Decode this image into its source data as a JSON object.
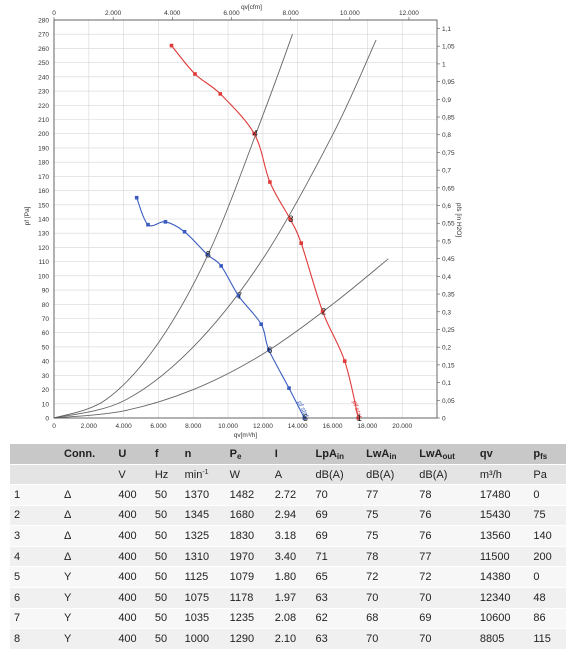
{
  "chart_data": {
    "type": "line",
    "x_bottom": {
      "label": "qv[m³/h]",
      "range": [
        0,
        22000
      ],
      "ticks": [
        0,
        2000,
        4000,
        6000,
        8000,
        10000,
        12000,
        14000,
        16000,
        18000,
        20000
      ],
      "tick_labels": [
        "0",
        "2.000",
        "4.000",
        "6.000",
        "8.000",
        "10.000",
        "12.000",
        "14.000",
        "16.000",
        "18.000",
        "20.000"
      ]
    },
    "x_top": {
      "label": "qv[cfm]",
      "range": [
        0,
        12949
      ],
      "ticks": [
        0,
        2000,
        4000,
        6000,
        8000,
        10000,
        12000
      ],
      "tick_labels": [
        "0",
        "2.000",
        "4.000",
        "6.000",
        "8.000",
        "10.000",
        "12.000"
      ]
    },
    "y_left": {
      "label": "pf [Pa]",
      "range": [
        0,
        280
      ],
      "ticks": [
        0,
        10,
        20,
        30,
        40,
        50,
        60,
        70,
        80,
        90,
        100,
        110,
        120,
        130,
        140,
        150,
        160,
        170,
        180,
        190,
        200,
        210,
        220,
        230,
        240,
        250,
        260,
        270,
        280
      ]
    },
    "y_right": {
      "label": "pfs [in H2O]",
      "range": [
        0,
        1.124
      ],
      "ticks": [
        0,
        0.05,
        0.1,
        0.15,
        0.2,
        0.25,
        0.3,
        0.35,
        0.4,
        0.45,
        0.5,
        0.55,
        0.6,
        0.65,
        0.7,
        0.75,
        0.8,
        0.85,
        0.9,
        0.95,
        1,
        1.05,
        1.1
      ],
      "tick_labels": [
        "0",
        "0,05",
        "0,1",
        "0,15",
        "0,2",
        "0,25",
        "0,3",
        "0,35",
        "0,4",
        "0,45",
        "0,5",
        "0,55",
        "0,6",
        "0,65",
        "0,7",
        "0,75",
        "0,8",
        "0,85",
        "0,9",
        "0,95",
        "1",
        "1,05",
        "1,1"
      ]
    },
    "grid": true,
    "series": [
      {
        "name": "Δ",
        "color": "#e03a3a",
        "x": [
          6750,
          8100,
          9550,
          11500,
          12400,
          13560,
          14200,
          15430,
          16700,
          17480
        ],
        "y": [
          262,
          242,
          228,
          200,
          166,
          140,
          123,
          75,
          40,
          0
        ]
      },
      {
        "name": "Y",
        "color": "#3a5cc0",
        "x": [
          4750,
          5400,
          6400,
          7500,
          8805,
          9600,
          10600,
          11900,
          12340,
          13500,
          14380
        ],
        "y": [
          155,
          136,
          138,
          131,
          115,
          107,
          86,
          66,
          48,
          21,
          0
        ]
      }
    ],
    "system_curves": [
      {
        "x": [
          0,
          3000,
          6000,
          9000,
          12000,
          13700
        ],
        "y": [
          0,
          13,
          53,
          119,
          213,
          270
        ]
      },
      {
        "x": [
          0,
          4000,
          8000,
          12000,
          16000,
          18500
        ],
        "y": [
          0,
          12,
          50,
          112,
          199,
          266
        ]
      },
      {
        "x": [
          0,
          4000,
          8000,
          12000,
          16000,
          19200
        ],
        "y": [
          0,
          5,
          20,
          45,
          80,
          112
        ]
      }
    ],
    "point_labels": [
      {
        "text": "1",
        "x": 17480,
        "y": 0
      },
      {
        "text": "2",
        "x": 15430,
        "y": 75
      },
      {
        "text": "3",
        "x": 13560,
        "y": 140
      },
      {
        "text": "4",
        "x": 11500,
        "y": 200
      },
      {
        "text": "5",
        "x": 14380,
        "y": 0
      },
      {
        "text": "6",
        "x": 12340,
        "y": 48
      },
      {
        "text": "7",
        "x": 10600,
        "y": 86
      },
      {
        "text": "8",
        "x": 8805,
        "y": 115
      }
    ],
    "curve_labels": [
      {
        "text": "pf stat",
        "series": "Δ"
      },
      {
        "text": "pf stat",
        "series": "Y"
      }
    ]
  },
  "table": {
    "headers": [
      "",
      "Conn.",
      "U",
      "f",
      "n",
      "Pe",
      "I",
      "LpAin",
      "LwAin",
      "LwAout",
      "qv",
      "pfs"
    ],
    "units": [
      "",
      "",
      "V",
      "Hz",
      "min-1",
      "W",
      "A",
      "dB(A)",
      "dB(A)",
      "dB(A)",
      "m³/h",
      "Pa"
    ],
    "rows": [
      [
        "1",
        "Δ",
        "400",
        "50",
        "1370",
        "1482",
        "2.72",
        "70",
        "77",
        "78",
        "17480",
        "0"
      ],
      [
        "2",
        "Δ",
        "400",
        "50",
        "1345",
        "1680",
        "2.94",
        "69",
        "75",
        "76",
        "15430",
        "75"
      ],
      [
        "3",
        "Δ",
        "400",
        "50",
        "1325",
        "1830",
        "3.18",
        "69",
        "75",
        "76",
        "13560",
        "140"
      ],
      [
        "4",
        "Δ",
        "400",
        "50",
        "1310",
        "1970",
        "3.40",
        "71",
        "78",
        "77",
        "11500",
        "200"
      ],
      [
        "5",
        "Y",
        "400",
        "50",
        "1125",
        "1079",
        "1.80",
        "65",
        "72",
        "72",
        "14380",
        "0"
      ],
      [
        "6",
        "Y",
        "400",
        "50",
        "1075",
        "1178",
        "1.97",
        "63",
        "70",
        "70",
        "12340",
        "48"
      ],
      [
        "7",
        "Y",
        "400",
        "50",
        "1035",
        "1235",
        "2.08",
        "62",
        "68",
        "69",
        "10600",
        "86"
      ],
      [
        "8",
        "Y",
        "400",
        "50",
        "1000",
        "1290",
        "2.10",
        "63",
        "70",
        "70",
        "8805",
        "115"
      ]
    ]
  }
}
